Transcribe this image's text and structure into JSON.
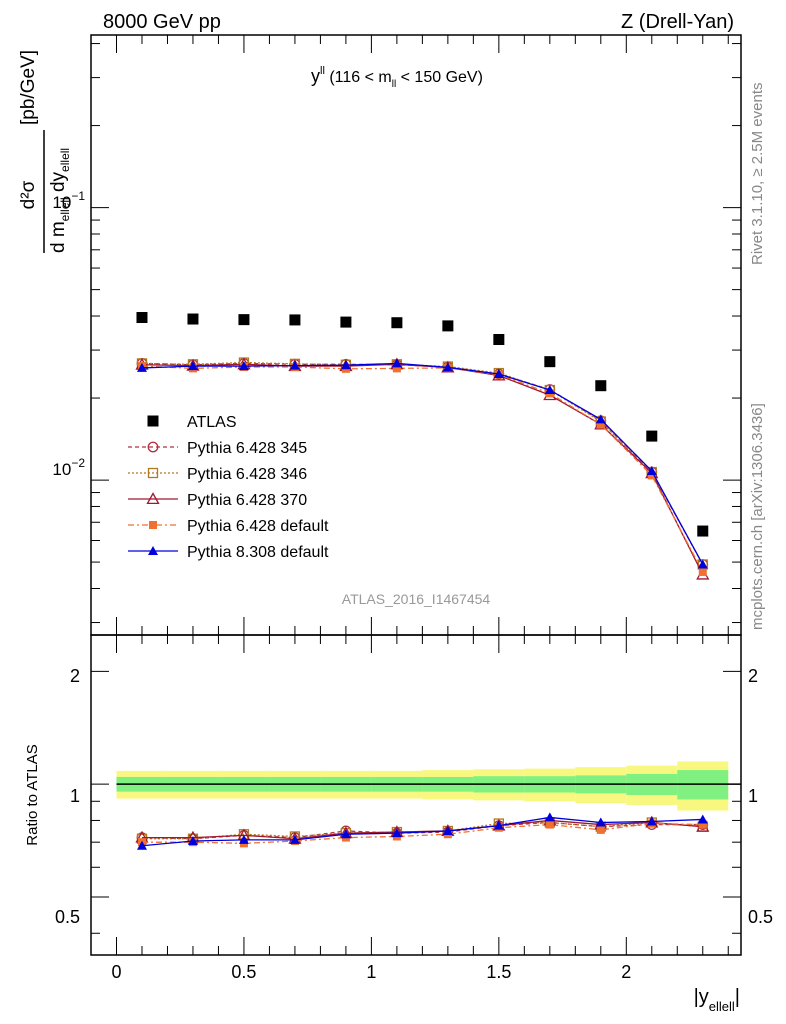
{
  "header": {
    "left": "8000 GeV pp",
    "right": "Z (Drell-Yan)"
  },
  "side_labels": {
    "rivet": "Rivet 3.1.10, ≥ 2.5M events",
    "mcplots": "mcplots.cern.ch [arXiv:1306.3436]"
  },
  "main_panel": {
    "title_main": "y",
    "title_sup": "ll",
    "title_rest1": " (116 < m",
    "title_sub": "ll",
    "title_rest2": " < 150 GeV)",
    "ylabel_num": "d²σ",
    "ylabel_den_pre": "d m",
    "ylabel_den_sub1": "ellell",
    "ylabel_den_mid": " dy",
    "ylabel_den_sub2": "ellell",
    "ylabel_unit": "[pb/GeV]",
    "tick_label_1e-1": "10",
    "tick_label_1e-1_exp": "−1",
    "tick_label_1e-2": "10",
    "tick_label_1e-2_exp": "−2",
    "watermark": "ATLAS_2016_I1467454"
  },
  "ratio_panel": {
    "ylabel": "Ratio to ATLAS",
    "ticks": [
      "0.5",
      "1",
      "2"
    ]
  },
  "xaxis": {
    "label_pre": "|y",
    "label_sub": "ellell",
    "label_post": "|",
    "ticks": [
      "0",
      "0.5",
      "1",
      "1.5",
      "2"
    ]
  },
  "chart_data": {
    "type": "scatter",
    "x": [
      0.1,
      0.3,
      0.5,
      0.7,
      0.9,
      1.1,
      1.3,
      1.5,
      1.7,
      1.9,
      2.1,
      2.3
    ],
    "xlim": [
      -0.1,
      2.45
    ],
    "ylim": [
      0.0027,
      0.43
    ],
    "yscale": "log",
    "ratio_ylim": [
      0.35,
      2.5
    ],
    "ratio_yscale": "log",
    "legend_position": "middle-left",
    "series": [
      {
        "name": "ATLAS",
        "color": "#000000",
        "marker": "square",
        "values": [
          0.0395,
          0.039,
          0.0388,
          0.0387,
          0.038,
          0.0378,
          0.0368,
          0.0328,
          0.0272,
          0.0222,
          0.0145,
          0.0065
        ],
        "ratio": [
          1,
          1,
          1,
          1,
          1,
          1,
          1,
          1,
          1,
          1,
          1,
          1
        ]
      },
      {
        "name": "Pythia 6.428 345",
        "color": "#b03040",
        "marker": "circle-open",
        "dash": "4,3",
        "values": [
          0.0268,
          0.0265,
          0.0268,
          0.0266,
          0.0266,
          0.0265,
          0.026,
          0.0245,
          0.0215,
          0.0165,
          0.0107,
          0.0049
        ],
        "ratio": [
          0.72,
          0.715,
          0.73,
          0.72,
          0.75,
          0.74,
          0.745,
          0.775,
          0.79,
          0.77,
          0.78,
          0.78
        ]
      },
      {
        "name": "Pythia 6.428 346",
        "color": "#b07820",
        "marker": "square-open",
        "dash": "2,2",
        "values": [
          0.0268,
          0.0266,
          0.027,
          0.0267,
          0.0265,
          0.0266,
          0.0261,
          0.0247,
          0.0214,
          0.0164,
          0.0107,
          0.0049
        ],
        "ratio": [
          0.715,
          0.715,
          0.735,
          0.725,
          0.74,
          0.745,
          0.75,
          0.785,
          0.79,
          0.77,
          0.79,
          0.77
        ]
      },
      {
        "name": "Pythia 6.428 370",
        "color": "#a01830",
        "marker": "triangle-open",
        "dash": "",
        "values": [
          0.0265,
          0.0263,
          0.0266,
          0.0262,
          0.0262,
          0.0266,
          0.0259,
          0.0242,
          0.0205,
          0.016,
          0.0106,
          0.0045
        ],
        "ratio": [
          0.72,
          0.72,
          0.73,
          0.715,
          0.74,
          0.745,
          0.75,
          0.775,
          0.8,
          0.78,
          0.79,
          0.77
        ]
      },
      {
        "name": "Pythia 6.428 default",
        "color": "#f07030",
        "marker": "square-filled",
        "dash": "6,3,2,3",
        "values": [
          0.0262,
          0.0257,
          0.026,
          0.026,
          0.0256,
          0.0257,
          0.0258,
          0.0244,
          0.0208,
          0.016,
          0.0104,
          0.0046
        ],
        "ratio": [
          0.7,
          0.7,
          0.695,
          0.705,
          0.72,
          0.725,
          0.735,
          0.765,
          0.78,
          0.755,
          0.785,
          0.78
        ]
      },
      {
        "name": "Pythia 8.308 default",
        "color": "#0000dd",
        "marker": "triangle-filled",
        "dash": "",
        "values": [
          0.0258,
          0.0262,
          0.0262,
          0.0263,
          0.0264,
          0.0268,
          0.0259,
          0.0245,
          0.0214,
          0.0167,
          0.0108,
          0.0049
        ],
        "ratio": [
          0.685,
          0.705,
          0.71,
          0.71,
          0.735,
          0.74,
          0.75,
          0.775,
          0.815,
          0.79,
          0.795,
          0.805
        ]
      }
    ],
    "ratio_band": {
      "inner": [
        0.045,
        0.045,
        0.045,
        0.045,
        0.045,
        0.045,
        0.045,
        0.05,
        0.05,
        0.055,
        0.065,
        0.09
      ],
      "outer": [
        0.085,
        0.085,
        0.085,
        0.085,
        0.085,
        0.085,
        0.09,
        0.095,
        0.1,
        0.11,
        0.12,
        0.15
      ],
      "inner_color": "#80f080",
      "outer_color": "#f8f880"
    }
  }
}
